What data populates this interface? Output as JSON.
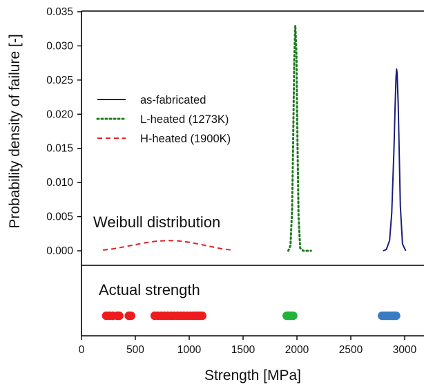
{
  "chart_data": {
    "type": "line",
    "ylabel": "Probability density of failure [-]",
    "xlabel": "Strength [MPa]",
    "xlim": [
      0,
      3250
    ],
    "ylim": [
      -0.002,
      0.035
    ],
    "x_ticks": [
      0,
      500,
      1000,
      1500,
      2000,
      2500,
      3000
    ],
    "y_ticks": [
      "0.000",
      "0.005",
      "0.010",
      "0.015",
      "0.020",
      "0.025",
      "0.030",
      "0.035"
    ],
    "top_annotation": "Weibull distribution",
    "bottom_annotation": "Actual strength",
    "legend_position": "upper-left",
    "series": [
      {
        "name": "as-fabricated",
        "style": "solid",
        "color": "#1a1f7a",
        "peak_x": 2925,
        "peak_y": 0.0266,
        "x": [
          2800,
          2830,
          2860,
          2880,
          2900,
          2910,
          2920,
          2925,
          2930,
          2940,
          2950,
          2960,
          2980,
          3010
        ],
        "y": [
          0.0,
          0.0002,
          0.0015,
          0.0055,
          0.0145,
          0.0205,
          0.0255,
          0.0266,
          0.026,
          0.0215,
          0.014,
          0.0065,
          0.001,
          0.0
        ]
      },
      {
        "name": "L-heated (1273K)",
        "style": "dotted",
        "color": "#1f7a1f",
        "peak_x": 1985,
        "peak_y": 0.033,
        "x": [
          1920,
          1940,
          1955,
          1965,
          1975,
          1985,
          1995,
          2005,
          2015,
          2030,
          2060,
          2100,
          2130
        ],
        "y": [
          0.0,
          0.0008,
          0.006,
          0.016,
          0.028,
          0.033,
          0.029,
          0.016,
          0.005,
          0.0004,
          0.0,
          0.0,
          0.0
        ]
      },
      {
        "name": "H-heated (1900K)",
        "style": "dashed",
        "color": "#e02020",
        "peak_x": 830,
        "peak_y": 0.0015,
        "x": [
          200,
          300,
          400,
          500,
          600,
          700,
          800,
          900,
          1000,
          1100,
          1200,
          1300,
          1400
        ],
        "y": [
          0.0001,
          0.0003,
          0.0006,
          0.0009,
          0.0012,
          0.00142,
          0.0015,
          0.00145,
          0.00125,
          0.00095,
          0.00062,
          0.0003,
          0.0001
        ]
      }
    ],
    "actual_strength": [
      {
        "name": "as-fabricated",
        "color": "#3a7cc4",
        "values": [
          2790,
          2810,
          2830,
          2850,
          2870,
          2890,
          2905,
          2920
        ]
      },
      {
        "name": "L-heated (1273K)",
        "color": "#22b33c",
        "values": [
          1905,
          1920,
          1935,
          1950,
          1965
        ]
      },
      {
        "name": "H-heated (1900K)",
        "color": "#ee1c1c",
        "values": [
          230,
          260,
          290,
          330,
          350,
          440,
          460,
          680,
          710,
          740,
          770,
          800,
          830,
          860,
          890,
          920,
          950,
          980,
          1010,
          1040,
          1060,
          1080,
          1100,
          1120
        ]
      }
    ],
    "grid": false
  }
}
